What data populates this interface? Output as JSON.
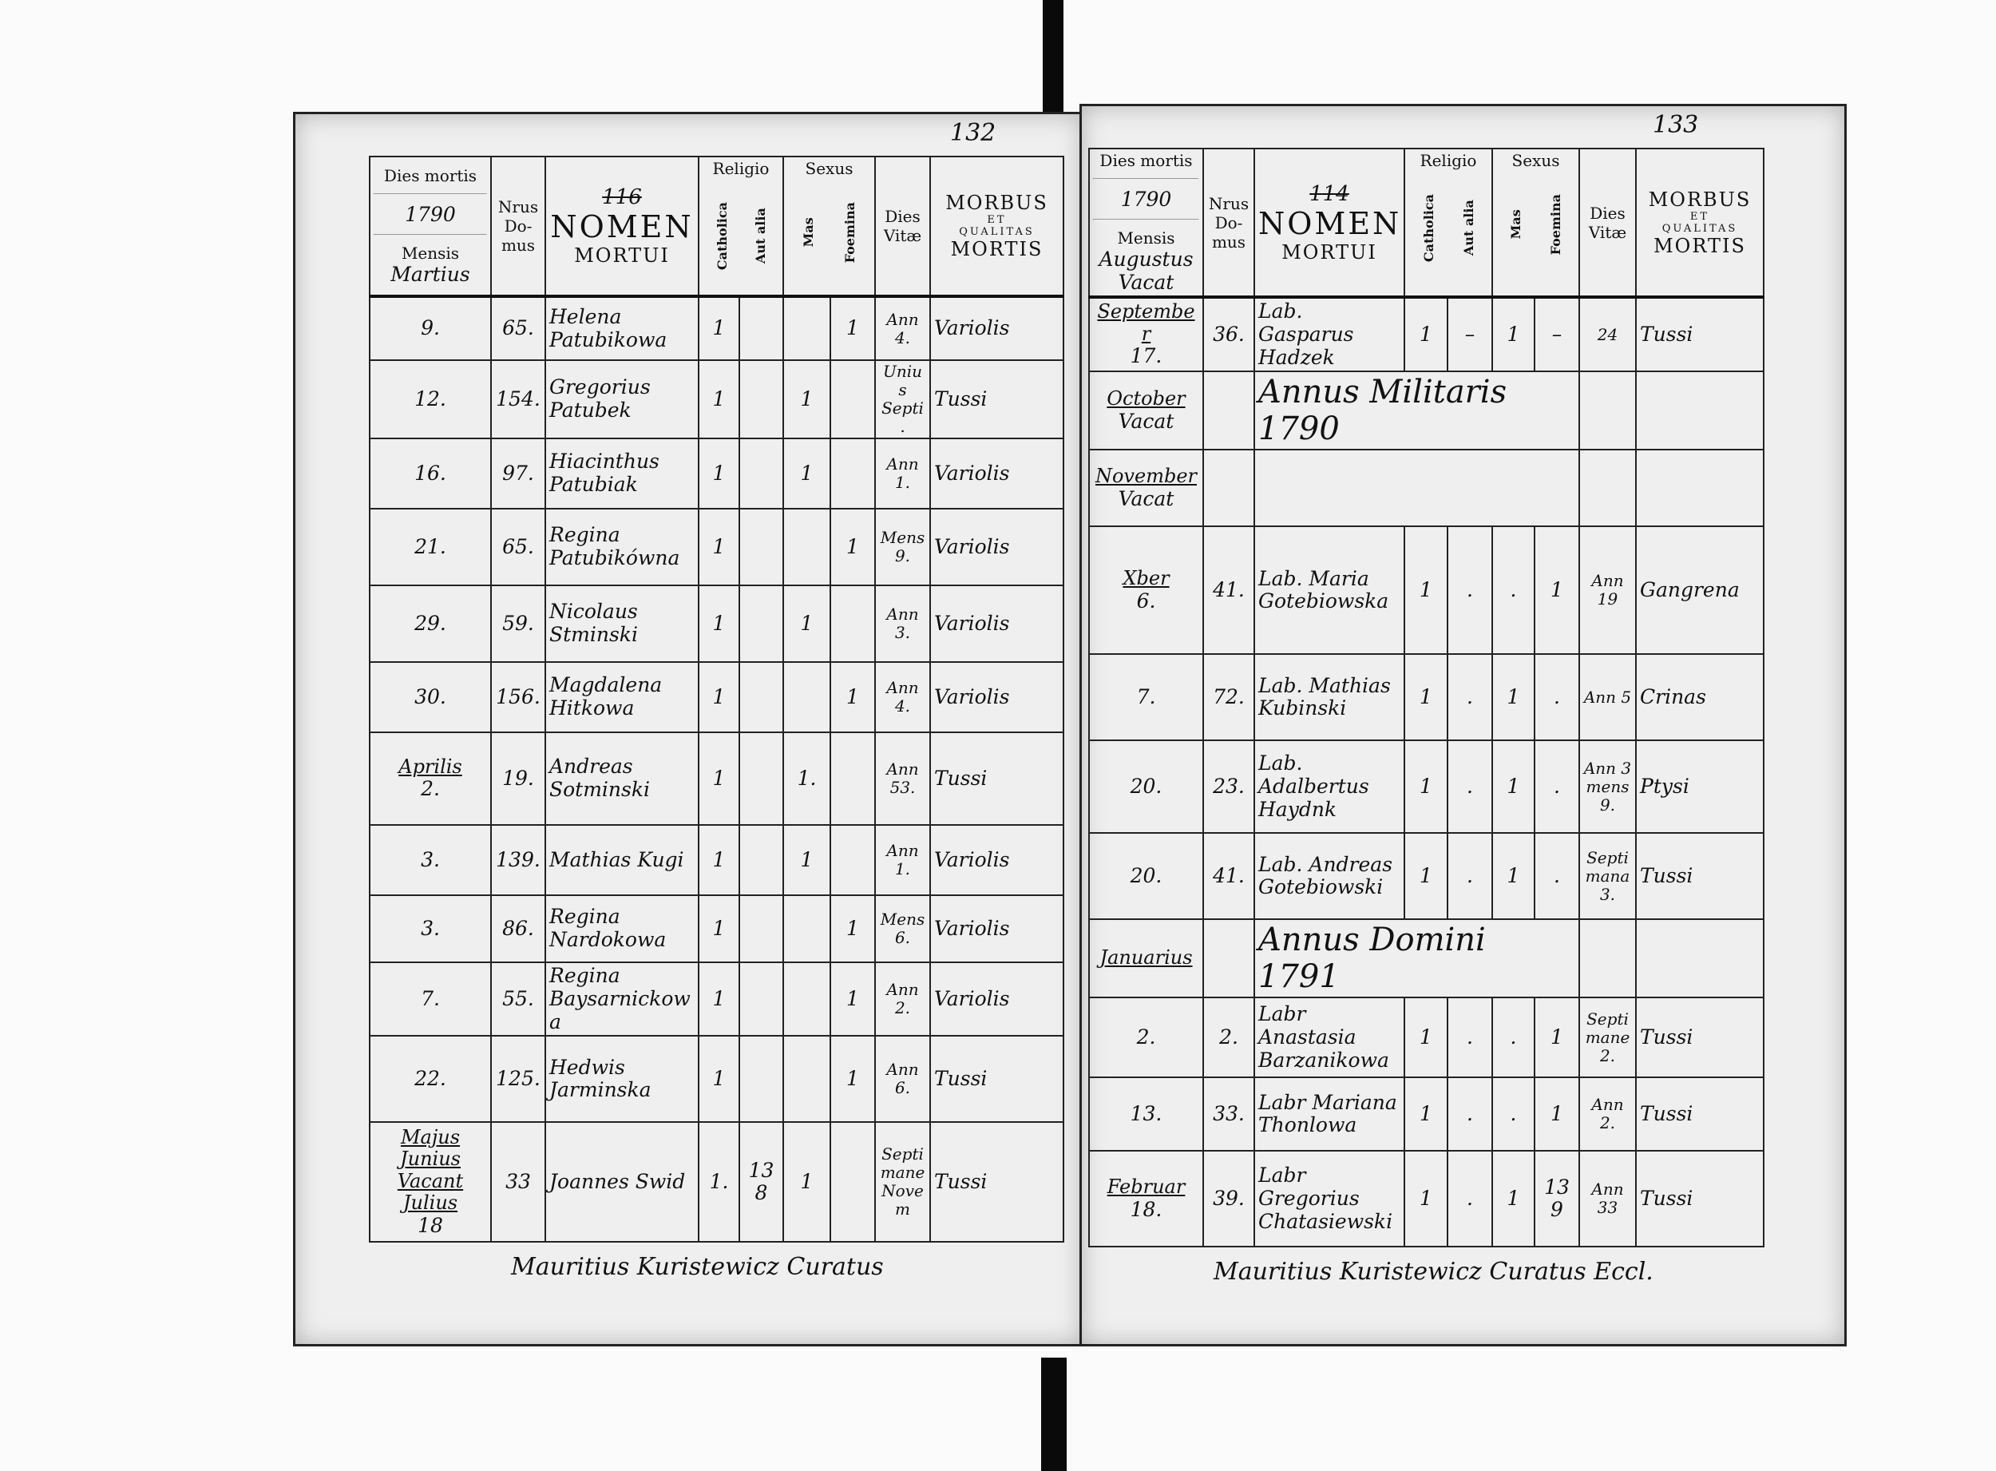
{
  "left_page": {
    "page_number": "132",
    "crossed_number": "116",
    "header": {
      "dies_mortis": "Dies mortis",
      "year": "1790",
      "mensis": "Mensis",
      "month": "Martius",
      "nrus_domus": "Nrus Do-mus",
      "nomen": "NOMEN",
      "mortui": "MORTUI",
      "religio": "Religio",
      "catholica": "Catholica",
      "aut_alia": "Aut alia",
      "sexus": "Sexus",
      "mas": "Mas",
      "foemina": "Foemina",
      "dies_vitae": "Dies Vitæ",
      "morbus": "MORBUS",
      "et": "ET",
      "qualitas": "QUALITAS",
      "mortis": "MORTIS"
    },
    "rows": [
      {
        "month": "",
        "day": "9.",
        "domus": "65.",
        "name": "Helena Patubikowa",
        "catholica": "1",
        "alia": "",
        "mas": "",
        "foemina": "1",
        "vitae": "Ann 4.",
        "morbus": "Variolis"
      },
      {
        "month": "",
        "day": "12.",
        "domus": "154.",
        "name": "Gregorius Patubek",
        "catholica": "1",
        "alia": "",
        "mas": "1",
        "foemina": "",
        "vitae": "Unius Septi.",
        "morbus": "Tussi"
      },
      {
        "month": "",
        "day": "16.",
        "domus": "97.",
        "name": "Hiacinthus Patubiak",
        "catholica": "1",
        "alia": "",
        "mas": "1",
        "foemina": "",
        "vitae": "Ann 1.",
        "morbus": "Variolis"
      },
      {
        "month": "",
        "day": "21.",
        "domus": "65.",
        "name": "Regina Patubikówna",
        "catholica": "1",
        "alia": "",
        "mas": "",
        "foemina": "1",
        "vitae": "Mens 9.",
        "morbus": "Variolis"
      },
      {
        "month": "",
        "day": "29.",
        "domus": "59.",
        "name": "Nicolaus Stminski",
        "catholica": "1",
        "alia": "",
        "mas": "1",
        "foemina": "",
        "vitae": "Ann 3.",
        "morbus": "Variolis"
      },
      {
        "month": "",
        "day": "30.",
        "domus": "156.",
        "name": "Magdalena Hitkowa",
        "catholica": "1",
        "alia": "",
        "mas": "",
        "foemina": "1",
        "vitae": "Ann 4.",
        "morbus": "Variolis"
      },
      {
        "month": "Aprilis",
        "day": "2.",
        "domus": "19.",
        "name": "Andreas Sotminski",
        "catholica": "1",
        "alia": "",
        "mas": "1.",
        "foemina": "",
        "vitae": "Ann 53.",
        "morbus": "Tussi"
      },
      {
        "month": "",
        "day": "3.",
        "domus": "139.",
        "name": "Mathias Kugi",
        "catholica": "1",
        "alia": "",
        "mas": "1",
        "foemina": "",
        "vitae": "Ann 1.",
        "morbus": "Variolis"
      },
      {
        "month": "",
        "day": "3.",
        "domus": "86.",
        "name": "Regina Nardokowa",
        "catholica": "1",
        "alia": "",
        "mas": "",
        "foemina": "1",
        "vitae": "Mens 6.",
        "morbus": "Variolis"
      },
      {
        "month": "",
        "day": "7.",
        "domus": "55.",
        "name": "Regina Baysarnickowa",
        "catholica": "1",
        "alia": "",
        "mas": "",
        "foemina": "1",
        "vitae": "Ann 2.",
        "morbus": "Variolis"
      },
      {
        "month": "",
        "day": "22.",
        "domus": "125.",
        "name": "Hedwis Jarminska",
        "catholica": "1",
        "alia": "",
        "mas": "",
        "foemina": "1",
        "vitae": "Ann 6.",
        "morbus": "Tussi"
      },
      {
        "month": "Majus Junius Vacant Julius",
        "day": "18",
        "domus": "33",
        "name": "Joannes Swid",
        "catholica": "1.",
        "alia": "138",
        "mas": "1",
        "foemina": "",
        "vitae": "Septimane Novem",
        "morbus": "Tussi"
      }
    ],
    "signature": "Mauritius Kuristewicz Curatus"
  },
  "right_page": {
    "page_number": "133",
    "crossed_number": "114",
    "header": {
      "dies_mortis": "Dies mortis",
      "year": "1790",
      "mensis": "Mensis",
      "month": "Augustus Vacat",
      "nrus_domus": "Nrus Do-mus",
      "nomen": "NOMEN",
      "mortui": "MORTUI",
      "religio": "Religio",
      "catholica": "Catholica",
      "aut_alia": "Aut alia",
      "sexus": "Sexus",
      "mas": "Mas",
      "foemina": "Foemina",
      "dies_vitae": "Dies Vitæ",
      "morbus": "MORBUS",
      "et": "ET",
      "qualitas": "QUALITAS",
      "mortis": "MORTIS"
    },
    "rows": [
      {
        "month": "September",
        "day": "17.",
        "domus": "36.",
        "name": "Lab. Gasparus Hadzek",
        "catholica": "1",
        "alia": "–",
        "mas": "1",
        "foemina": "–",
        "vitae": "24",
        "morbus": "Tussi"
      },
      {
        "month": "October",
        "day": "Vacat",
        "note": "Annus Militaris 1790"
      },
      {
        "month": "November",
        "day": "Vacat",
        "note": ""
      },
      {
        "month": "Xber",
        "day": "6.",
        "domus": "41.",
        "name": "Lab. Maria Gotebiowska",
        "catholica": "1",
        "alia": ".",
        "mas": ".",
        "foemina": "1",
        "vitae": "Ann 19",
        "morbus": "Gangrena"
      },
      {
        "month": "",
        "day": "7.",
        "domus": "72.",
        "name": "Lab. Mathias Kubinski",
        "catholica": "1",
        "alia": ".",
        "mas": "1",
        "foemina": ".",
        "vitae": "Ann 5",
        "morbus": "Crinas"
      },
      {
        "month": "",
        "day": "20.",
        "domus": "23.",
        "name": "Lab. Adalbertus Haydnk",
        "catholica": "1",
        "alia": ".",
        "mas": "1",
        "foemina": ".",
        "vitae": "Ann 3 mens 9.",
        "morbus": "Ptysi"
      },
      {
        "month": "",
        "day": "20.",
        "domus": "41.",
        "name": "Lab. Andreas Gotebiowski",
        "catholica": "1",
        "alia": ".",
        "mas": "1",
        "foemina": ".",
        "vitae": "Septimana 3.",
        "morbus": "Tussi"
      },
      {
        "month": "Januarius",
        "day": "",
        "note": "Annus Domini 1791"
      },
      {
        "month": "",
        "day": "2.",
        "domus": "2.",
        "name": "Labr Anastasia Barzanikowa",
        "catholica": "1",
        "alia": ".",
        "mas": ".",
        "foemina": "1",
        "vitae": "Septimane 2.",
        "morbus": "Tussi"
      },
      {
        "month": "",
        "day": "13.",
        "domus": "33.",
        "name": "Labr Mariana Thonlowa",
        "catholica": "1",
        "alia": ".",
        "mas": ".",
        "foemina": "1",
        "vitae": "Ann 2.",
        "morbus": "Tussi"
      },
      {
        "month": "Februar",
        "day": "18.",
        "domus": "39.",
        "name": "Labr Gregorius Chatasiewski",
        "catholica": "1",
        "alia": ".",
        "mas": "1",
        "foemina": "139",
        "vitae": "Ann 33",
        "morbus": "Tussi"
      }
    ],
    "signature": "Mauritius Kuristewicz Curatus Eccl."
  }
}
